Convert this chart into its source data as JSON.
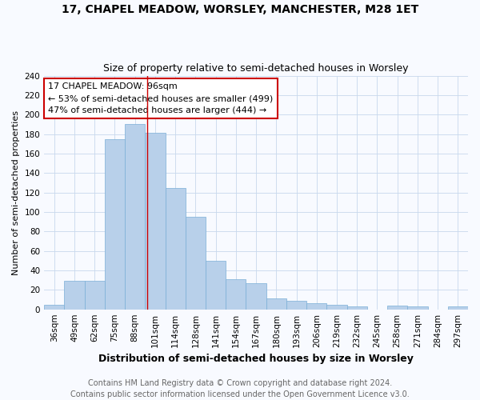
{
  "title": "17, CHAPEL MEADOW, WORSLEY, MANCHESTER, M28 1ET",
  "subtitle": "Size of property relative to semi-detached houses in Worsley",
  "xlabel": "Distribution of semi-detached houses by size in Worsley",
  "ylabel": "Number of semi-detached properties",
  "annotation_line1": "17 CHAPEL MEADOW: 96sqm",
  "annotation_line2": "← 53% of semi-detached houses are smaller (499)",
  "annotation_line3": "47% of semi-detached houses are larger (444) →",
  "categories": [
    "36sqm",
    "49sqm",
    "62sqm",
    "75sqm",
    "88sqm",
    "101sqm",
    "114sqm",
    "128sqm",
    "141sqm",
    "154sqm",
    "167sqm",
    "180sqm",
    "193sqm",
    "206sqm",
    "219sqm",
    "232sqm",
    "245sqm",
    "258sqm",
    "271sqm",
    "284sqm",
    "297sqm"
  ],
  "values": [
    5,
    29,
    29,
    175,
    190,
    181,
    125,
    95,
    50,
    31,
    27,
    11,
    9,
    6,
    5,
    3,
    0,
    4,
    3,
    0,
    3
  ],
  "bar_color": "#b8d0ea",
  "bar_edge_color": "#7aaed6",
  "red_line_color": "#cc0000",
  "red_line_bin": 4,
  "annotation_box_edge": "#cc0000",
  "background_color": "#f8faff",
  "grid_color": "#c8d8ec",
  "ylim": [
    0,
    240
  ],
  "yticks": [
    0,
    20,
    40,
    60,
    80,
    100,
    120,
    140,
    160,
    180,
    200,
    220,
    240
  ],
  "title_fontsize": 10,
  "subtitle_fontsize": 9,
  "xlabel_fontsize": 9,
  "ylabel_fontsize": 8,
  "tick_fontsize": 7.5,
  "annotation_fontsize": 8,
  "footer_fontsize": 7,
  "footer_line1": "Contains HM Land Registry data © Crown copyright and database right 2024.",
  "footer_line2": "Contains public sector information licensed under the Open Government Licence v3.0."
}
